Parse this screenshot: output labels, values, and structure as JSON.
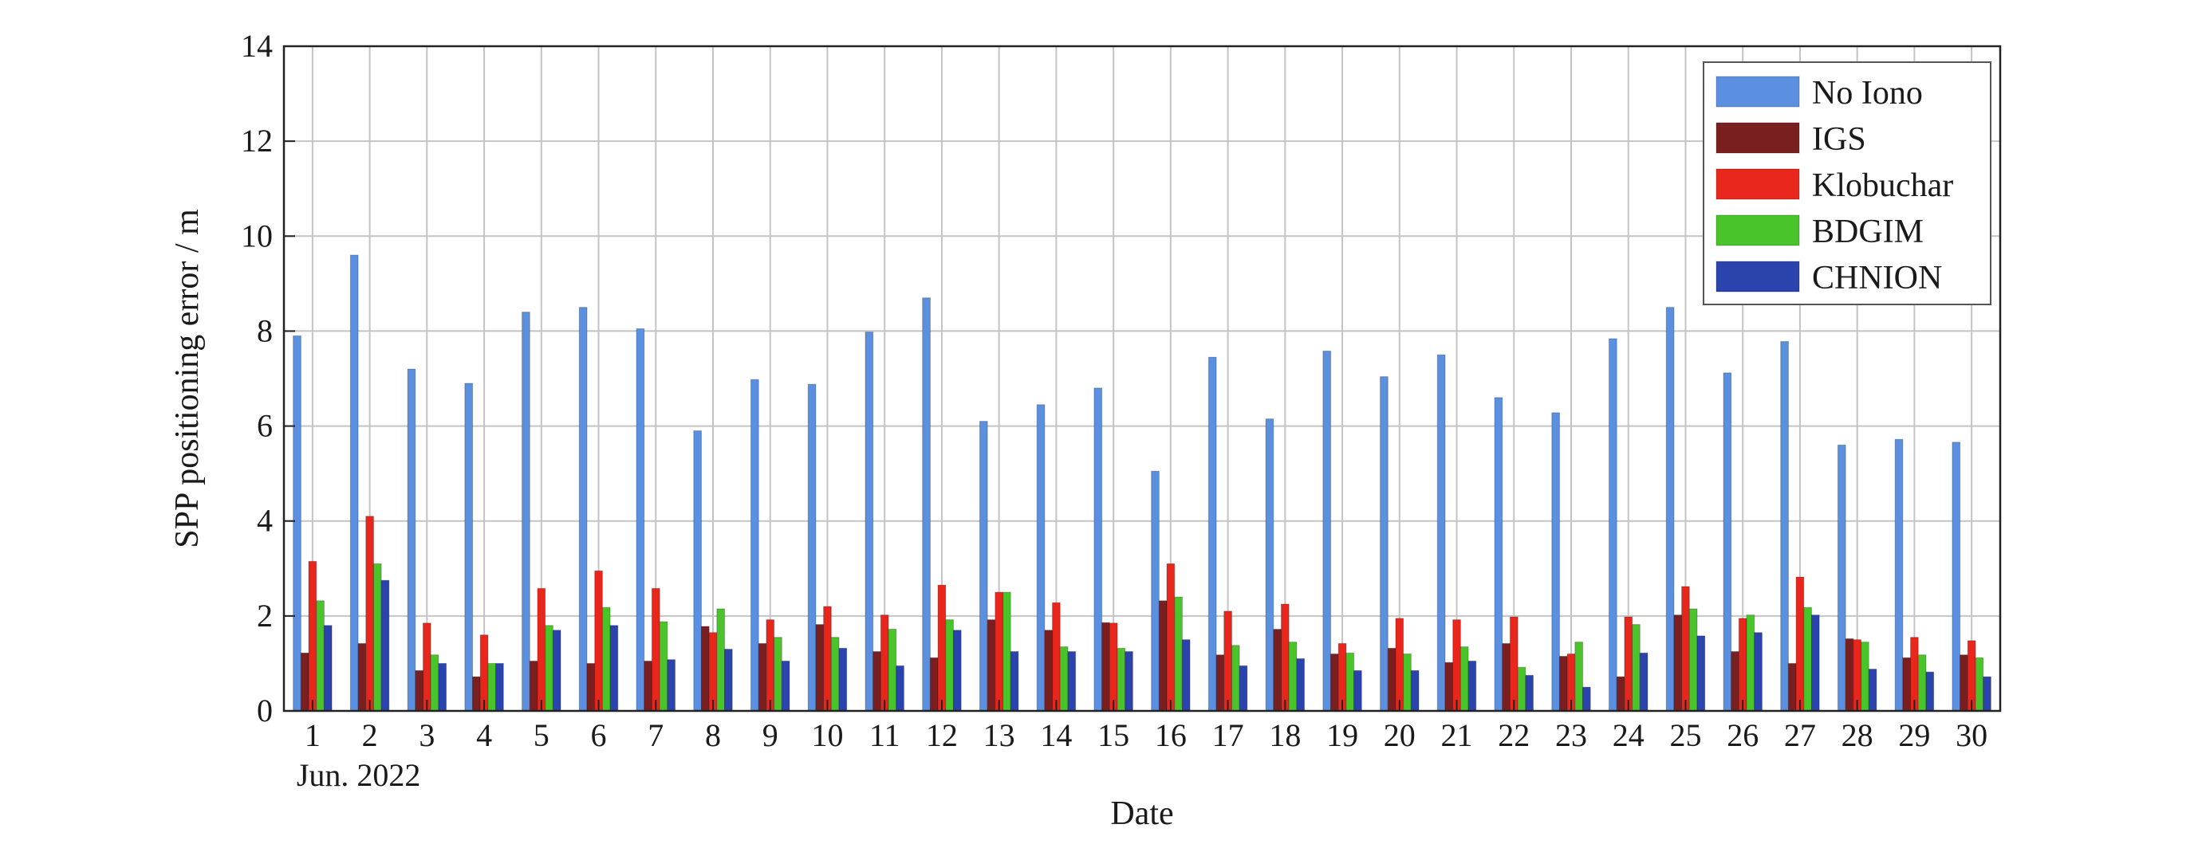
{
  "chart_data": {
    "type": "bar",
    "title": "",
    "xlabel": "Date",
    "ylabel": "SPP positioning error / m",
    "x_sublabel": "Jun. 2022",
    "ylim": [
      0,
      14
    ],
    "yticks": [
      0,
      2,
      4,
      6,
      8,
      10,
      12,
      14
    ],
    "grid": true,
    "legend_position": "top-right",
    "categories": [
      "1",
      "2",
      "3",
      "4",
      "5",
      "6",
      "7",
      "8",
      "9",
      "10",
      "11",
      "12",
      "13",
      "14",
      "15",
      "16",
      "17",
      "18",
      "19",
      "20",
      "21",
      "22",
      "23",
      "24",
      "25",
      "26",
      "27",
      "28",
      "29",
      "30"
    ],
    "series": [
      {
        "name": "No Iono",
        "color": "#5b8fe0",
        "values": [
          7.9,
          9.6,
          7.2,
          6.9,
          8.4,
          8.5,
          8.05,
          5.9,
          6.98,
          6.88,
          7.98,
          8.7,
          6.1,
          6.45,
          6.8,
          5.05,
          7.45,
          6.15,
          7.58,
          7.04,
          7.5,
          6.6,
          6.28,
          7.84,
          8.5,
          7.12,
          7.78,
          5.6,
          5.72,
          5.66
        ]
      },
      {
        "name": "IGS",
        "color": "#7a1f1f",
        "values": [
          1.22,
          1.42,
          0.85,
          0.72,
          1.05,
          1.0,
          1.05,
          1.78,
          1.42,
          1.82,
          1.25,
          1.12,
          1.92,
          1.7,
          1.86,
          2.32,
          1.18,
          1.72,
          1.2,
          1.32,
          1.02,
          1.42,
          1.15,
          0.72,
          2.02,
          1.25,
          1.0,
          1.52,
          1.12,
          1.18
        ]
      },
      {
        "name": "Klobuchar",
        "color": "#e8261c",
        "values": [
          3.15,
          4.1,
          1.85,
          1.6,
          2.58,
          2.95,
          2.58,
          1.65,
          1.92,
          2.2,
          2.02,
          2.65,
          2.5,
          2.28,
          1.85,
          3.1,
          2.1,
          2.25,
          1.42,
          1.95,
          1.92,
          1.98,
          1.2,
          1.98,
          2.62,
          1.95,
          2.82,
          1.5,
          1.55,
          1.48
        ]
      },
      {
        "name": "BDGIM",
        "color": "#49c42a",
        "values": [
          2.32,
          3.1,
          1.18,
          1.0,
          1.8,
          2.18,
          1.88,
          2.15,
          1.55,
          1.55,
          1.72,
          1.92,
          2.5,
          1.35,
          1.32,
          2.4,
          1.38,
          1.45,
          1.22,
          1.2,
          1.35,
          0.92,
          1.45,
          1.82,
          2.15,
          2.02,
          2.18,
          1.45,
          1.18,
          1.12
        ]
      },
      {
        "name": "CHNION",
        "color": "#2b43ad",
        "values": [
          1.8,
          2.75,
          1.0,
          1.0,
          1.7,
          1.8,
          1.08,
          1.3,
          1.05,
          1.32,
          0.95,
          1.7,
          1.25,
          1.25,
          1.25,
          1.5,
          0.95,
          1.1,
          0.85,
          0.85,
          1.05,
          0.75,
          0.5,
          1.22,
          1.58,
          1.65,
          2.02,
          0.88,
          0.82,
          0.72
        ]
      }
    ]
  }
}
